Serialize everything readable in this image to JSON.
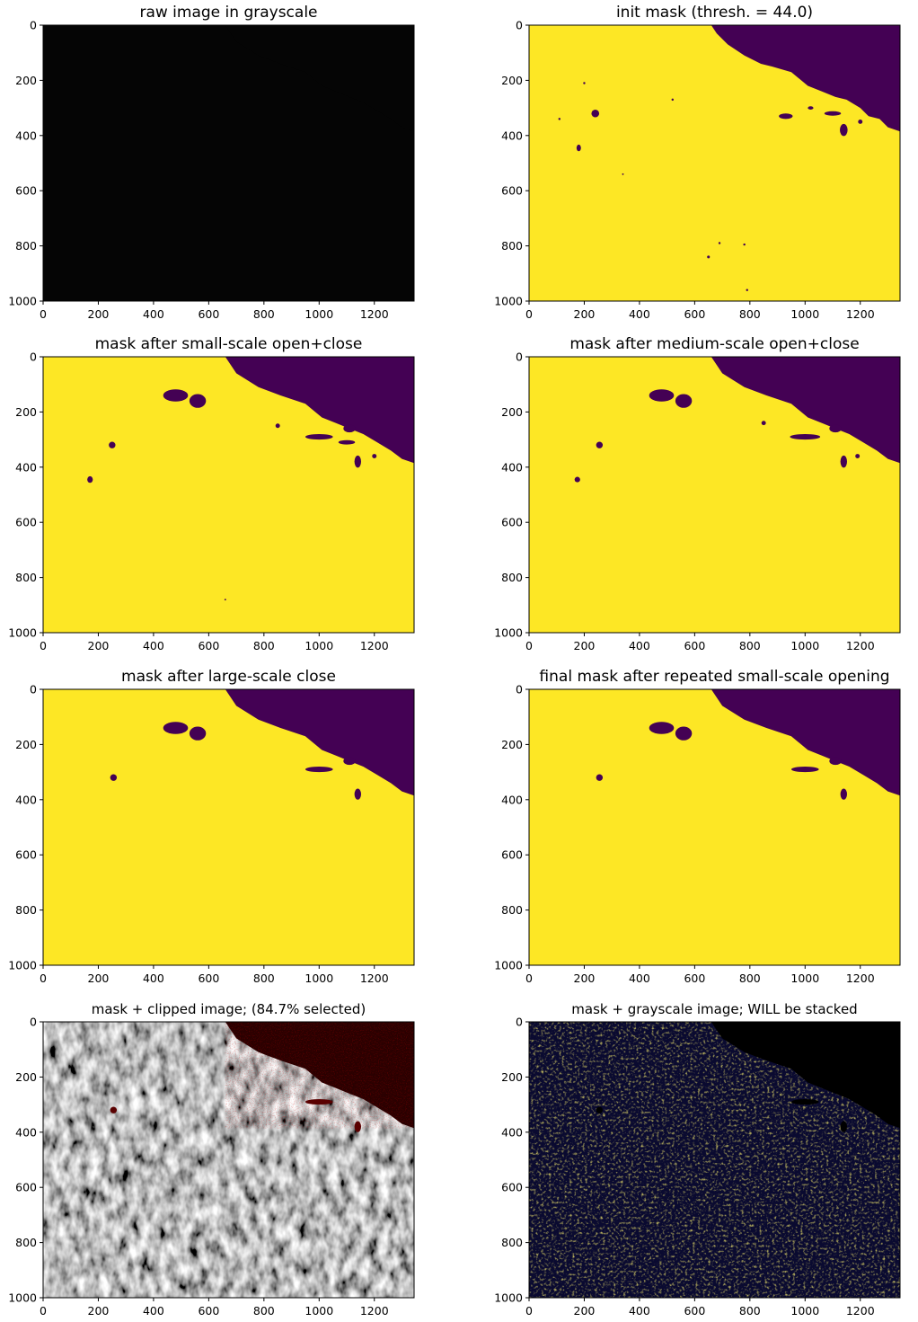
{
  "figure": {
    "background": "#ffffff",
    "colors": {
      "mask_on": "#fde725",
      "mask_off": "#440154",
      "image_black": "#050505",
      "excluded_tint": "#2a0000",
      "stacked_bg": "#0a0a30",
      "stacked_bright": "#d8c82a"
    }
  },
  "chart_data": [
    {
      "id": "raw",
      "type": "image",
      "title": "raw image in grayscale",
      "colormap": "gray",
      "xticks": [
        0,
        200,
        400,
        600,
        800,
        1000,
        1200
      ],
      "yticks": [
        0,
        200,
        400,
        600,
        800,
        1000
      ],
      "xlim": [
        0,
        1344
      ],
      "ylim": [
        1000,
        0
      ]
    },
    {
      "id": "init",
      "type": "mask",
      "title": "init mask (thresh. = 44.0)",
      "colormap": "viridis",
      "xticks": [
        0,
        200,
        400,
        600,
        800,
        1000,
        1200
      ],
      "yticks": [
        0,
        200,
        400,
        600,
        800,
        1000
      ],
      "xlim": [
        0,
        1344
      ],
      "ylim": [
        1000,
        0
      ]
    },
    {
      "id": "small",
      "type": "mask",
      "title": "mask after small-scale open+close",
      "colormap": "viridis",
      "xticks": [
        0,
        200,
        400,
        600,
        800,
        1000,
        1200
      ],
      "yticks": [
        0,
        200,
        400,
        600,
        800,
        1000
      ],
      "xlim": [
        0,
        1344
      ],
      "ylim": [
        1000,
        0
      ]
    },
    {
      "id": "medium",
      "type": "mask",
      "title": "mask after medium-scale open+close",
      "colormap": "viridis",
      "xticks": [
        0,
        200,
        400,
        600,
        800,
        1000,
        1200
      ],
      "yticks": [
        0,
        200,
        400,
        600,
        800,
        1000
      ],
      "xlim": [
        0,
        1344
      ],
      "ylim": [
        1000,
        0
      ]
    },
    {
      "id": "large",
      "type": "mask",
      "title": "mask after large-scale close",
      "colormap": "viridis",
      "xticks": [
        0,
        200,
        400,
        600,
        800,
        1000,
        1200
      ],
      "yticks": [
        0,
        200,
        400,
        600,
        800,
        1000
      ],
      "xlim": [
        0,
        1344
      ],
      "ylim": [
        1000,
        0
      ]
    },
    {
      "id": "final",
      "type": "mask",
      "title": "final mask after repeated small-scale opening",
      "colormap": "viridis",
      "xticks": [
        0,
        200,
        400,
        600,
        800,
        1000,
        1200
      ],
      "yticks": [
        0,
        200,
        400,
        600,
        800,
        1000
      ],
      "xlim": [
        0,
        1344
      ],
      "ylim": [
        1000,
        0
      ]
    },
    {
      "id": "clipped",
      "type": "image",
      "title": "mask + clipped image; (84.7% selected)",
      "selected_percent": 84.7,
      "colormap": "gray",
      "xticks": [
        0,
        200,
        400,
        600,
        800,
        1000,
        1200
      ],
      "yticks": [
        0,
        200,
        400,
        600,
        800,
        1000
      ],
      "xlim": [
        0,
        1344
      ],
      "ylim": [
        1000,
        0
      ]
    },
    {
      "id": "stacked",
      "type": "image",
      "title": "mask + grayscale image; WILL be stacked",
      "colormap": "viridis-dim",
      "xticks": [
        0,
        200,
        400,
        600,
        800,
        1000,
        1200
      ],
      "yticks": [
        0,
        200,
        400,
        600,
        800,
        1000
      ],
      "xlim": [
        0,
        1344
      ],
      "ylim": [
        1000,
        0
      ]
    }
  ]
}
